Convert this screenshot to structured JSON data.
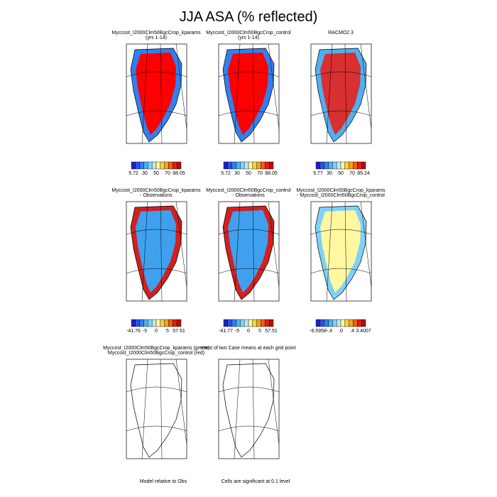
{
  "title": "JJA ASA (% reflected)",
  "panels": [
    {
      "title": [
        "Myccost_I2000Clm50BgcCrop_kparams",
        "(yrs 1-14)"
      ],
      "colorbar": [
        "5.72",
        "30",
        "50",
        "70",
        "88.05"
      ]
    },
    {
      "title": [
        "Myccost_I2000Clm50BgcCrop_control",
        "(yrs 1-14)"
      ],
      "colorbar": [
        "5.72",
        "30",
        "50",
        "70",
        "88.05"
      ]
    },
    {
      "title": [
        "RACMO2.3"
      ],
      "colorbar": [
        "5.77",
        "30",
        "50",
        "70",
        "85.24"
      ]
    },
    {
      "title": [
        "Myccost_I2000Clm50BgcCrop_kparams",
        "- Observations"
      ],
      "colorbar": [
        "-41.76",
        "-5",
        "0",
        "5",
        "57.51"
      ]
    },
    {
      "title": [
        "Myccost_I2000Clm50BgcCrop_control",
        "- Observations"
      ],
      "colorbar": [
        "-41.77",
        "-5",
        "0",
        "5",
        "57.51"
      ]
    },
    {
      "title": [
        "Myccost_I2000Clm50BgcCrop_kparams",
        "- Myccost_I2000Clm50BgcCrop_control"
      ],
      "colorbar": [
        "-6.5958",
        "-.4",
        ".0",
        ".4",
        "3.4007"
      ]
    },
    {
      "title": [
        "Myccost_I2000Clm50BgcCrop_kparams (green)",
        "Myccost_I2000Clm50BgcCrop_control (red)"
      ],
      "note": "Model relative to Obs"
    },
    {
      "title": [
        "t-test of two Case means at each grid point"
      ],
      "note": "Cells are significant at 0.1 level"
    }
  ]
}
